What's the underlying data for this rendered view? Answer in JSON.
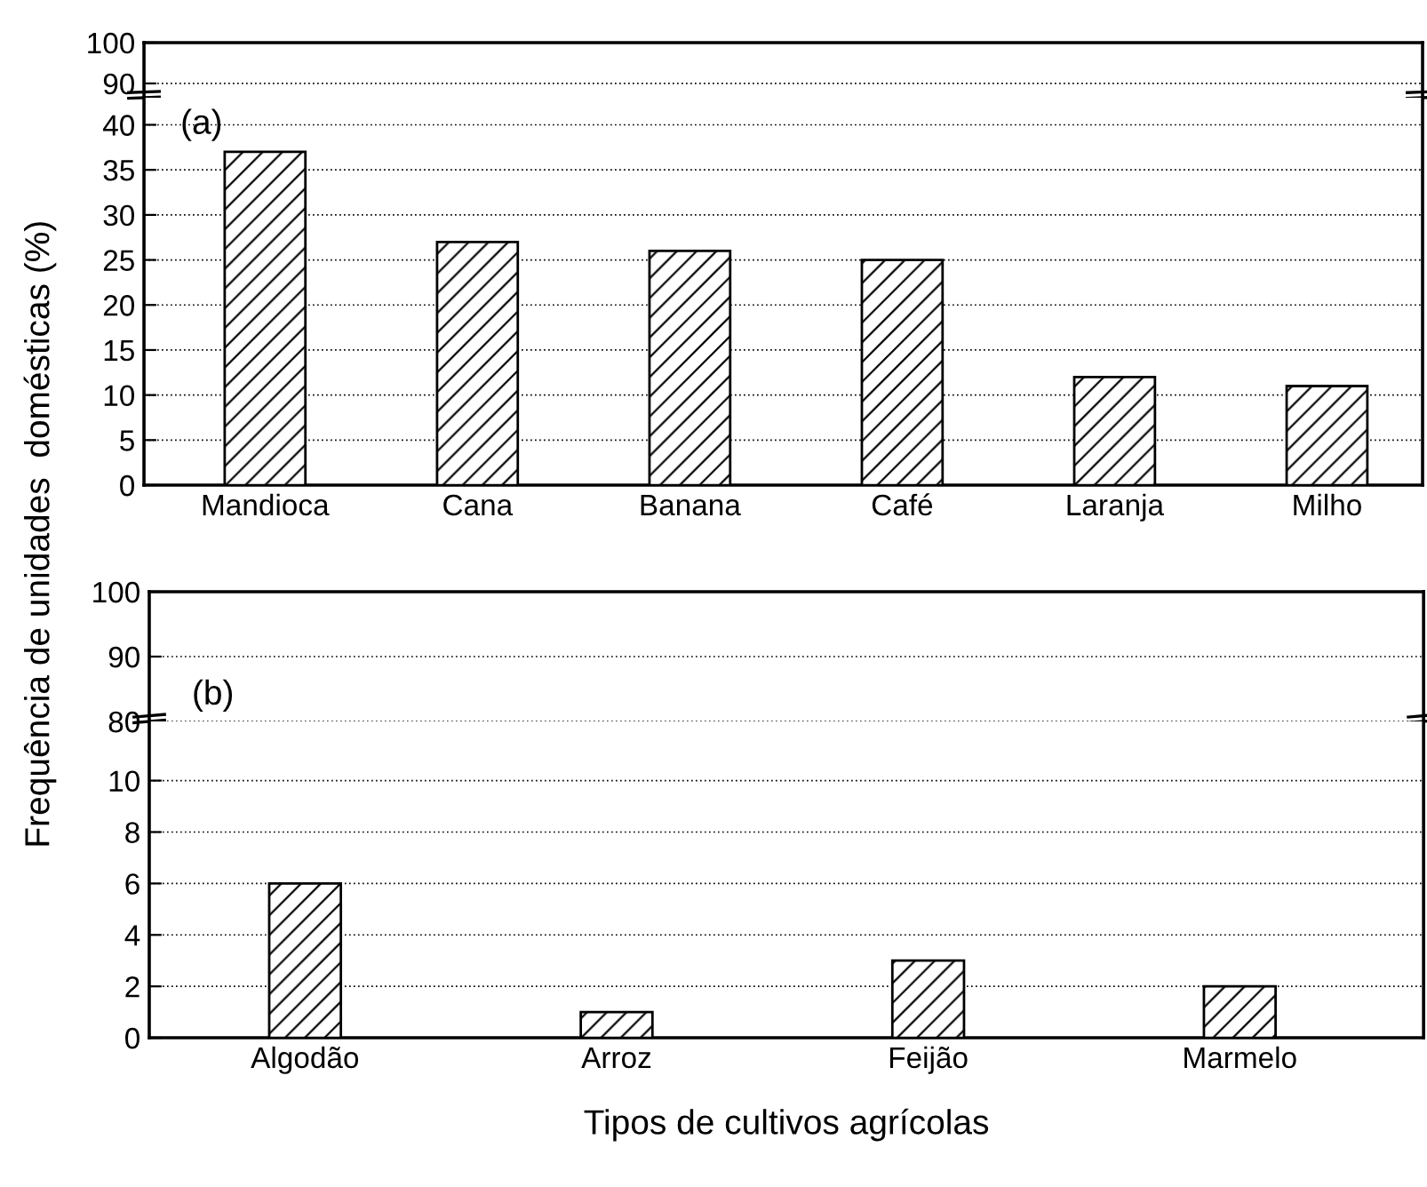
{
  "chart_data": [
    {
      "type": "bar",
      "categories": [
        null,
        null,
        null,
        null,
        null,
        null
      ],
      "values": [
        null,
        null,
        null,
        null,
        null,
        null
      ],
      "ylim": [
        86.5,
        100
      ],
      "yticks": [
        90,
        100
      ],
      "grid": "y",
      "tick_labels": "y"
    },
    {
      "type": "bar",
      "categories": [
        "Mandioca",
        "Cana",
        "Banana",
        "Café",
        "Laranja",
        "Milho"
      ],
      "values": [
        37,
        27,
        26,
        25,
        12,
        11
      ],
      "ylim": [
        0,
        43
      ],
      "yticks": [
        0,
        5,
        10,
        15,
        20,
        25,
        30,
        35,
        40
      ],
      "grid": "y",
      "ylabel": "Frequência de unidades  domésticas (%)",
      "annotations": [
        "(a)"
      ]
    },
    {
      "type": "bar",
      "categories": [
        null,
        null,
        null,
        null
      ],
      "values": [
        null,
        null,
        null,
        null
      ],
      "ylim": [
        80,
        100
      ],
      "yticks": [
        80,
        90,
        100
      ],
      "grid": "y",
      "tick_labels": "y",
      "annotations": [
        "(b)"
      ]
    },
    {
      "type": "bar",
      "categories": [
        "Algodão",
        "Arroz",
        "Feijão",
        "Marmelo"
      ],
      "values": [
        6,
        1,
        3,
        2
      ],
      "ylim": [
        0,
        12.3
      ],
      "yticks": [
        0,
        2,
        4,
        6,
        8,
        10
      ],
      "grid": "y",
      "xlabel": "Tipos de cultivos agrícolas"
    }
  ]
}
